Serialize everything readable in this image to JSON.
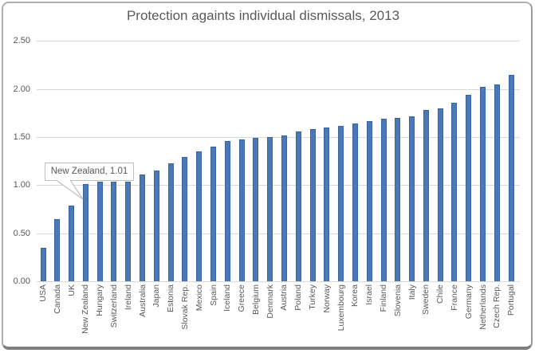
{
  "chart_data": {
    "type": "bar",
    "title": "Protection againts individual dismissals, 2013",
    "categories": [
      "USA",
      "Canada",
      "UK",
      "New Zealand",
      "Hungary",
      "Switzerland",
      "Ireland",
      "Australia",
      "Japan",
      "Estonia",
      "Slovak Rep.",
      "Mexico",
      "Spain",
      "Iceland",
      "Greece",
      "Belgium",
      "Denmark",
      "Austria",
      "Poland",
      "Turkey",
      "Norway",
      "Luxembourg",
      "Korea",
      "Israel",
      "Finland",
      "Slovenia",
      "Italy",
      "Sweden",
      "Chile",
      "France",
      "Germany",
      "Netherlands",
      "Czech Rep.",
      "Portugal"
    ],
    "values": [
      0.35,
      0.65,
      0.79,
      1.01,
      1.04,
      1.04,
      1.04,
      1.11,
      1.15,
      1.23,
      1.29,
      1.35,
      1.4,
      1.46,
      1.48,
      1.49,
      1.5,
      1.52,
      1.56,
      1.58,
      1.6,
      1.62,
      1.64,
      1.67,
      1.69,
      1.7,
      1.72,
      1.78,
      1.8,
      1.86,
      1.94,
      2.02,
      2.05,
      2.15
    ],
    "xlabel": "",
    "ylabel": "",
    "ylim": [
      0,
      2.5
    ],
    "ytick_labels": [
      "0.00",
      "0.50",
      "1.00",
      "1.50",
      "2.00",
      "2.50"
    ],
    "grid": "horizontal",
    "legend": "none",
    "annotation": {
      "text": "New Zealand, 1.01",
      "target_category": "New Zealand",
      "value": 1.01
    },
    "bar_color": "#4a7ab5",
    "bar_border_color": "#38639e"
  },
  "colors": {
    "text": "#595959",
    "gridline": "#d9d9d9",
    "background": "#ffffff",
    "frame_border": "#b0b0b0",
    "frame_shadow": "#7e7e7e",
    "callout_border": "#bfbfbf"
  }
}
